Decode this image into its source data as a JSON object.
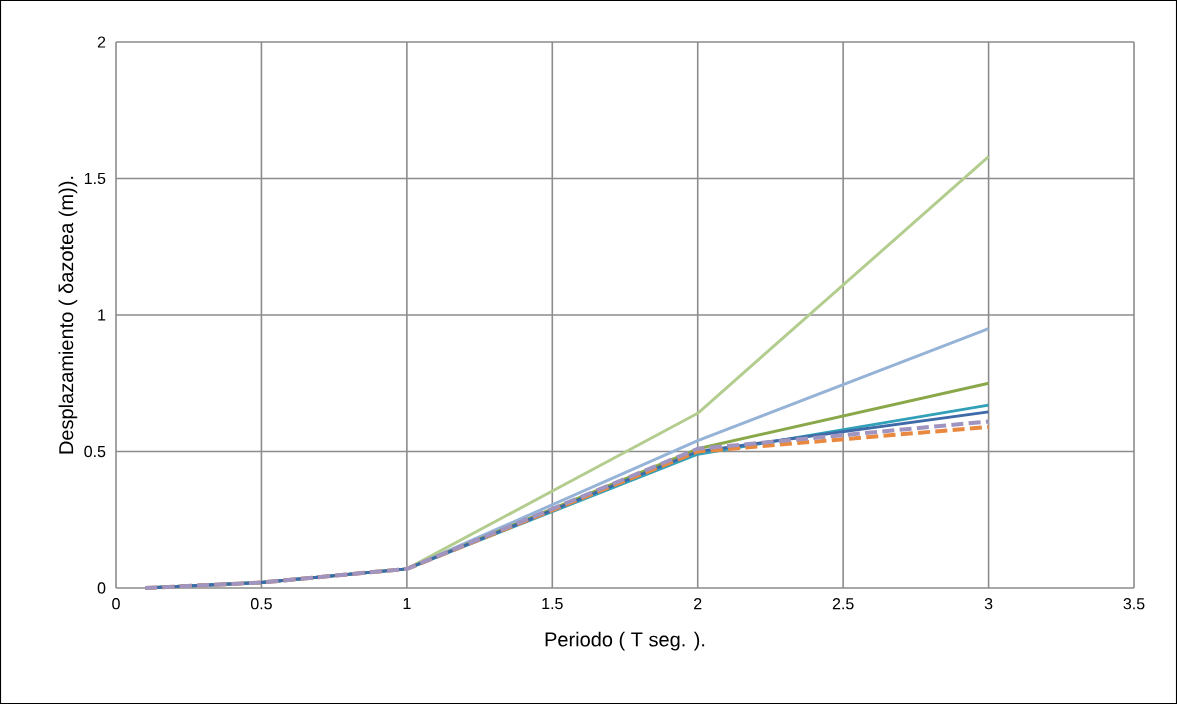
{
  "chart_data": {
    "type": "line",
    "xlabel": "Periodo ( T seg. ).",
    "ylabel": "Desplazamiento  ( δazotea (m)).",
    "x": [
      0.1,
      0.5,
      1,
      2,
      3
    ],
    "series": [
      {
        "color": "#b3cd8e",
        "values": [
          0,
          0.02,
          0.07,
          0.64,
          1.58
        ]
      },
      {
        "color": "#95b3d7",
        "values": [
          0,
          0.02,
          0.07,
          0.54,
          0.95
        ]
      },
      {
        "color": "#8aa84a",
        "values": [
          0,
          0.02,
          0.07,
          0.51,
          0.75
        ]
      },
      {
        "color": "#31a0b8",
        "values": [
          0,
          0.02,
          0.07,
          0.49,
          0.67
        ]
      },
      {
        "color": "#3e6aa8",
        "values": [
          0,
          0.02,
          0.07,
          0.5,
          0.645
        ]
      },
      {
        "color": "#e9893f",
        "values": [
          0,
          0.02,
          0.07,
          0.5,
          0.59
        ],
        "line_style": "dashed"
      },
      {
        "color": "#a094c0",
        "values": [
          0,
          0.02,
          0.07,
          0.51,
          0.61
        ],
        "line_style": "dashed"
      }
    ],
    "xlim": [
      0,
      3.5
    ],
    "xticks": [
      0,
      0.5,
      1,
      1.5,
      2,
      2.5,
      3,
      3.5
    ],
    "ylim": [
      0,
      2
    ],
    "yticks": [
      0,
      0.5,
      1,
      1.5,
      2
    ],
    "grid": true,
    "marker": "none",
    "line_style": "solid"
  }
}
